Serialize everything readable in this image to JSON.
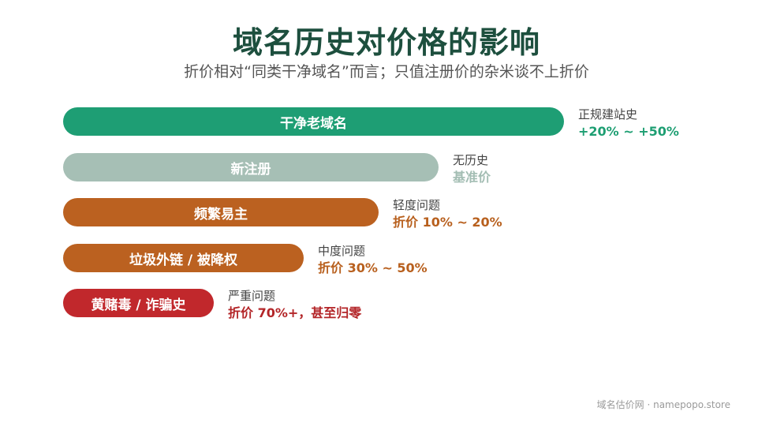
{
  "header": {
    "title": "域名历史对价格的影响",
    "subtitle": "折价相对“同类干净域名”而言；只值注册价的杂米谈不上折价"
  },
  "footer": {
    "text": "域名估价网 · namepopo.store"
  },
  "chart_data": {
    "type": "bar",
    "orientation": "horizontal",
    "categories": [
      "干净老域名",
      "新注册",
      "频繁易主",
      "垃圾外链 / 被降权",
      "黄赌毒 / 诈骗史"
    ],
    "values": [
      100,
      75,
      63,
      48,
      30
    ],
    "scale_note": "relative bar length, 新注册 = baseline",
    "annotations": [
      {
        "label": "正规建站史",
        "value": "+20% ~ +50%",
        "color": "#1d9e72"
      },
      {
        "label": "无历史",
        "value": "基准价",
        "color": "#a3bdb3"
      },
      {
        "label": "轻度问题",
        "value": "折价 10% ~ 20%",
        "color": "#b8601e"
      },
      {
        "label": "中度问题",
        "value": "折价 30% ~ 50%",
        "color": "#b8601e"
      },
      {
        "label": "严重问题",
        "value": "折价 70%+，甚至归零",
        "color": "#b32528"
      }
    ],
    "bar_colors": [
      "#1e9e74",
      "#a6bfb5",
      "#bb6120",
      "#bb6120",
      "#c1282c"
    ]
  }
}
